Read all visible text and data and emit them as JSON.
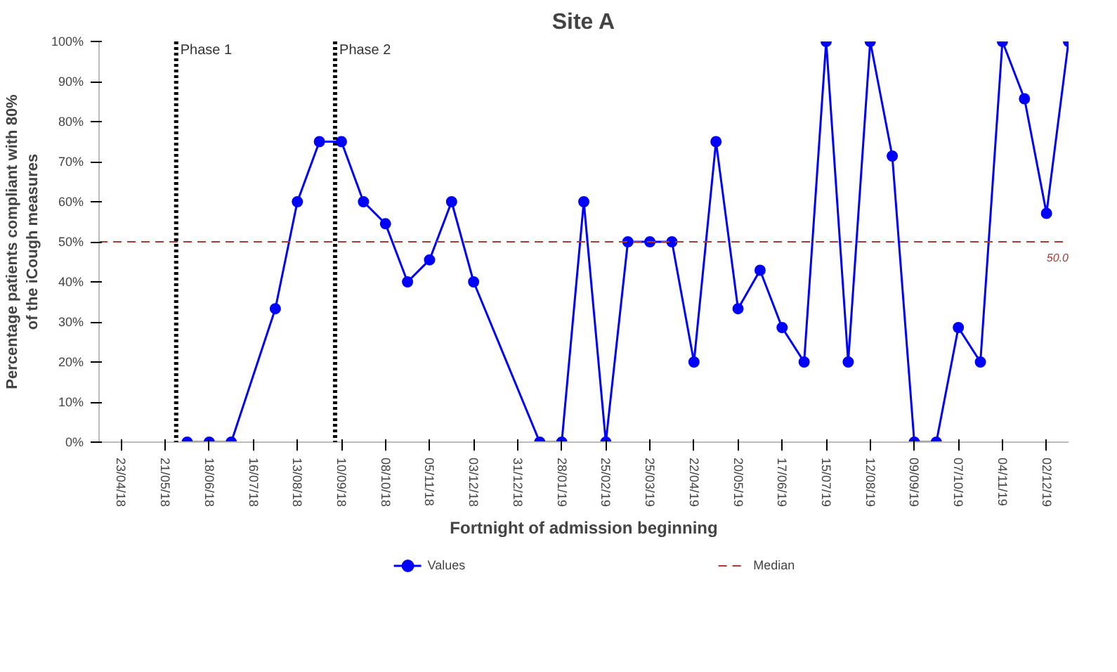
{
  "chart_data": {
    "type": "line",
    "title": "Site A",
    "xlabel": "Fortnight of admission beginning",
    "ylabel": "Percentage patients compliant with 80% of the iCough measures",
    "x": [
      "2018-06-04",
      "2018-06-18",
      "2018-07-02",
      "2018-07-30",
      "2018-08-13",
      "2018-08-27",
      "2018-09-10",
      "2018-09-24",
      "2018-10-08",
      "2018-10-22",
      "2018-11-05",
      "2018-11-19",
      "2018-12-03",
      "2019-01-14",
      "2019-01-28",
      "2019-02-11",
      "2019-02-25",
      "2019-03-11",
      "2019-03-25",
      "2019-04-08",
      "2019-04-22",
      "2019-05-06",
      "2019-05-20",
      "2019-06-03",
      "2019-06-17",
      "2019-07-01",
      "2019-07-15",
      "2019-07-29",
      "2019-08-12",
      "2019-08-26",
      "2019-09-09",
      "2019-09-23",
      "2019-10-07",
      "2019-10-21",
      "2019-11-04",
      "2019-11-18",
      "2019-12-02",
      "2019-12-16"
    ],
    "series": [
      {
        "name": "Values",
        "color": "#0000ff",
        "values": [
          0,
          0,
          0,
          33.3,
          60,
          75,
          75,
          60,
          54.5,
          40,
          45.5,
          60,
          40,
          0,
          0,
          60,
          0,
          50,
          50,
          50,
          20,
          75,
          33.3,
          42.9,
          28.6,
          20,
          100,
          20,
          100,
          71.4,
          0,
          0,
          28.6,
          20,
          100,
          85.7,
          57.1,
          100
        ]
      }
    ],
    "marker": "circle",
    "line_style": "solid",
    "xlim": [
      "2018-04-09",
      "2019-12-16"
    ],
    "xticks": [
      {
        "value": "2018-04-23",
        "label": "23/04/18"
      },
      {
        "value": "2018-05-21",
        "label": "21/05/18"
      },
      {
        "value": "2018-06-18",
        "label": "18/06/18"
      },
      {
        "value": "2018-07-16",
        "label": "16/07/18"
      },
      {
        "value": "2018-08-13",
        "label": "13/08/18"
      },
      {
        "value": "2018-09-10",
        "label": "10/09/18"
      },
      {
        "value": "2018-10-08",
        "label": "08/10/18"
      },
      {
        "value": "2018-11-05",
        "label": "05/11/18"
      },
      {
        "value": "2018-12-03",
        "label": "03/12/18"
      },
      {
        "value": "2018-12-31",
        "label": "31/12/18"
      },
      {
        "value": "2019-01-28",
        "label": "28/01/19"
      },
      {
        "value": "2019-02-25",
        "label": "25/02/19"
      },
      {
        "value": "2019-03-25",
        "label": "25/03/19"
      },
      {
        "value": "2019-04-22",
        "label": "22/04/19"
      },
      {
        "value": "2019-05-20",
        "label": "20/05/19"
      },
      {
        "value": "2019-06-17",
        "label": "17/06/19"
      },
      {
        "value": "2019-07-15",
        "label": "15/07/19"
      },
      {
        "value": "2019-08-12",
        "label": "12/08/19"
      },
      {
        "value": "2019-09-09",
        "label": "09/09/19"
      },
      {
        "value": "2019-10-07",
        "label": "07/10/19"
      },
      {
        "value": "2019-11-04",
        "label": "04/11/19"
      },
      {
        "value": "2019-12-02",
        "label": "02/12/19"
      }
    ],
    "ylim": [
      0,
      100
    ],
    "yticks": [
      {
        "value": 0,
        "label": "0%"
      },
      {
        "value": 10,
        "label": "10%"
      },
      {
        "value": 20,
        "label": "20%"
      },
      {
        "value": 30,
        "label": "30%"
      },
      {
        "value": 40,
        "label": "40%"
      },
      {
        "value": 50,
        "label": "50%"
      },
      {
        "value": 60,
        "label": "60%"
      },
      {
        "value": 70,
        "label": "70%"
      },
      {
        "value": 80,
        "label": "80%"
      },
      {
        "value": 90,
        "label": "90%"
      },
      {
        "value": 100,
        "label": "100%"
      }
    ],
    "ref_lines": [
      {
        "axis": "x",
        "value": "2018-05-28",
        "label": "Phase 1",
        "color": "#000000",
        "line_style": "dotted"
      },
      {
        "axis": "x",
        "value": "2018-09-06",
        "label": "Phase 2",
        "color": "#000000",
        "line_style": "dotted"
      },
      {
        "axis": "y",
        "value": 50,
        "label": "Median",
        "color": "#b03a2e",
        "line_style": "dashed"
      }
    ],
    "annotations": [
      {
        "text": "50.0",
        "x": "2019-12-16",
        "y": 50
      }
    ],
    "grid": false,
    "legend": "bottom"
  }
}
